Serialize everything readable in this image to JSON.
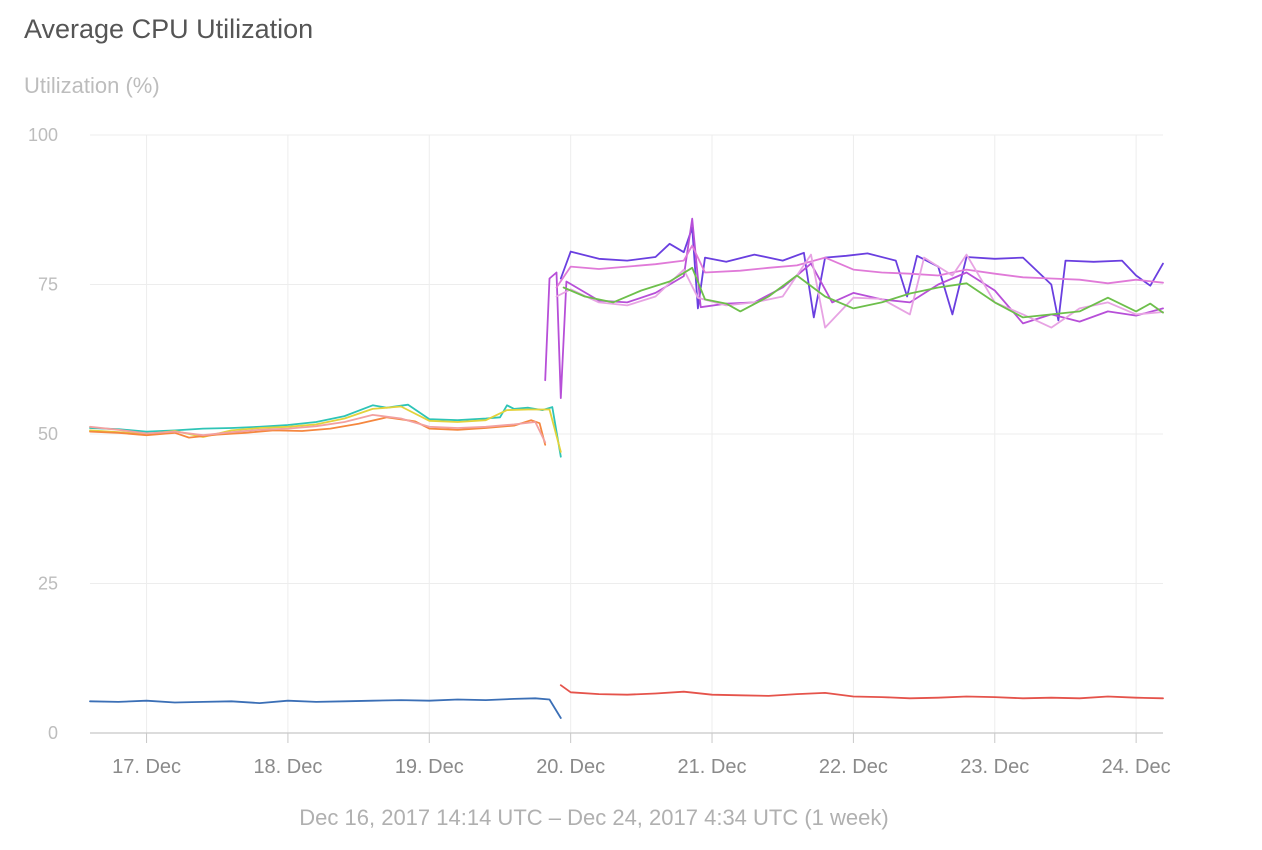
{
  "chart_data": {
    "type": "line",
    "title": "Average CPU Utilization",
    "ylabel": "Utilization (%)",
    "xlabel": "",
    "caption": "Dec 16, 2017 14:14 UTC – Dec 24, 2017 4:34 UTC (1 week)",
    "x_axis": {
      "type": "time",
      "unit": "days",
      "range": [
        "2017-12-16 14:14",
        "2017-12-24 04:34"
      ],
      "ticks": [
        {
          "label": "17. Dec",
          "value": 17.0
        },
        {
          "label": "18. Dec",
          "value": 18.0
        },
        {
          "label": "19. Dec",
          "value": 19.0
        },
        {
          "label": "20. Dec",
          "value": 20.0
        },
        {
          "label": "21. Dec",
          "value": 21.0
        },
        {
          "label": "22. Dec",
          "value": 22.0
        },
        {
          "label": "23. Dec",
          "value": 23.0
        },
        {
          "label": "24. Dec",
          "value": 24.0
        }
      ]
    },
    "x_domain": [
      16.6,
      24.19
    ],
    "ylim": [
      0,
      100
    ],
    "y_ticks": [
      0,
      25,
      50,
      75,
      100
    ],
    "grid": true,
    "legend": "none",
    "series": [
      {
        "color": "#2ec4b6",
        "points": [
          [
            16.6,
            51
          ],
          [
            16.8,
            50.8
          ],
          [
            17.0,
            50.4
          ],
          [
            17.2,
            50.6
          ],
          [
            17.4,
            50.9
          ],
          [
            17.6,
            51.0
          ],
          [
            17.8,
            51.2
          ],
          [
            18.0,
            51.5
          ],
          [
            18.2,
            52.0
          ],
          [
            18.4,
            53.0
          ],
          [
            18.6,
            54.8
          ],
          [
            18.7,
            54.4
          ],
          [
            18.85,
            54.9
          ],
          [
            19.0,
            52.5
          ],
          [
            19.2,
            52.3
          ],
          [
            19.4,
            52.6
          ],
          [
            19.5,
            52.8
          ],
          [
            19.55,
            54.8
          ],
          [
            19.6,
            54.2
          ],
          [
            19.7,
            54.4
          ],
          [
            19.8,
            54.0
          ],
          [
            19.87,
            54.5
          ],
          [
            19.93,
            46.2
          ]
        ]
      },
      {
        "color": "#e3d23b",
        "points": [
          [
            16.6,
            50.6
          ],
          [
            16.8,
            50.3
          ],
          [
            17.0,
            50.0
          ],
          [
            17.2,
            50.5
          ],
          [
            17.4,
            49.5
          ],
          [
            17.6,
            50.6
          ],
          [
            17.8,
            51.0
          ],
          [
            18.0,
            51.2
          ],
          [
            18.2,
            51.6
          ],
          [
            18.4,
            52.6
          ],
          [
            18.6,
            54.2
          ],
          [
            18.8,
            54.6
          ],
          [
            19.0,
            52.2
          ],
          [
            19.2,
            52.0
          ],
          [
            19.4,
            52.3
          ],
          [
            19.55,
            54.0
          ],
          [
            19.7,
            54.1
          ],
          [
            19.85,
            54.1
          ],
          [
            19.93,
            47.0
          ]
        ]
      },
      {
        "color": "#f5873f",
        "points": [
          [
            16.6,
            50.4
          ],
          [
            16.8,
            50.2
          ],
          [
            17.0,
            49.8
          ],
          [
            17.2,
            50.2
          ],
          [
            17.3,
            49.4
          ],
          [
            17.5,
            49.9
          ],
          [
            17.7,
            50.2
          ],
          [
            17.9,
            50.6
          ],
          [
            18.1,
            50.5
          ],
          [
            18.3,
            50.9
          ],
          [
            18.5,
            51.7
          ],
          [
            18.7,
            52.8
          ],
          [
            18.9,
            52.1
          ],
          [
            19.0,
            50.9
          ],
          [
            19.2,
            50.7
          ],
          [
            19.4,
            51.0
          ],
          [
            19.6,
            51.4
          ],
          [
            19.72,
            52.3
          ],
          [
            19.78,
            51.8
          ],
          [
            19.82,
            48.2
          ]
        ]
      },
      {
        "color": "#f2a0a0",
        "points": [
          [
            16.6,
            51.2
          ],
          [
            16.8,
            50.7
          ],
          [
            17.0,
            50.1
          ],
          [
            17.2,
            50.4
          ],
          [
            17.4,
            49.8
          ],
          [
            17.6,
            50.3
          ],
          [
            17.8,
            50.7
          ],
          [
            18.0,
            50.9
          ],
          [
            18.2,
            51.3
          ],
          [
            18.4,
            52.0
          ],
          [
            18.6,
            53.2
          ],
          [
            18.8,
            52.6
          ],
          [
            19.0,
            51.2
          ],
          [
            19.2,
            51.0
          ],
          [
            19.4,
            51.2
          ],
          [
            19.6,
            51.6
          ],
          [
            19.75,
            52.0
          ],
          [
            19.82,
            48.6
          ]
        ]
      },
      {
        "color": "#3b6fb6",
        "points": [
          [
            16.6,
            5.3
          ],
          [
            16.8,
            5.2
          ],
          [
            17.0,
            5.4
          ],
          [
            17.2,
            5.1
          ],
          [
            17.4,
            5.2
          ],
          [
            17.6,
            5.3
          ],
          [
            17.8,
            5.0
          ],
          [
            18.0,
            5.4
          ],
          [
            18.2,
            5.2
          ],
          [
            18.4,
            5.3
          ],
          [
            18.6,
            5.4
          ],
          [
            18.8,
            5.5
          ],
          [
            19.0,
            5.4
          ],
          [
            19.2,
            5.6
          ],
          [
            19.4,
            5.5
          ],
          [
            19.6,
            5.7
          ],
          [
            19.75,
            5.8
          ],
          [
            19.85,
            5.6
          ],
          [
            19.93,
            2.5
          ]
        ]
      },
      {
        "color": "#e5534b",
        "points": [
          [
            19.93,
            8.0
          ],
          [
            20.0,
            6.8
          ],
          [
            20.2,
            6.5
          ],
          [
            20.4,
            6.4
          ],
          [
            20.6,
            6.6
          ],
          [
            20.8,
            6.9
          ],
          [
            21.0,
            6.4
          ],
          [
            21.2,
            6.3
          ],
          [
            21.4,
            6.2
          ],
          [
            21.6,
            6.5
          ],
          [
            21.8,
            6.7
          ],
          [
            22.0,
            6.1
          ],
          [
            22.2,
            6.0
          ],
          [
            22.4,
            5.8
          ],
          [
            22.6,
            5.9
          ],
          [
            22.8,
            6.1
          ],
          [
            23.0,
            6.0
          ],
          [
            23.2,
            5.8
          ],
          [
            23.4,
            5.9
          ],
          [
            23.6,
            5.8
          ],
          [
            23.8,
            6.1
          ],
          [
            24.0,
            5.9
          ],
          [
            24.19,
            5.8
          ]
        ]
      },
      {
        "color": "#6a3fe0",
        "points": [
          [
            19.93,
            76.0
          ],
          [
            20.0,
            80.5
          ],
          [
            20.2,
            79.3
          ],
          [
            20.4,
            79.0
          ],
          [
            20.6,
            79.6
          ],
          [
            20.7,
            81.8
          ],
          [
            20.8,
            80.4
          ],
          [
            20.86,
            84.5
          ],
          [
            20.9,
            71.0
          ],
          [
            20.95,
            79.5
          ],
          [
            21.1,
            78.8
          ],
          [
            21.3,
            80.0
          ],
          [
            21.5,
            79.0
          ],
          [
            21.65,
            80.3
          ],
          [
            21.72,
            69.5
          ],
          [
            21.8,
            79.5
          ],
          [
            21.95,
            79.8
          ],
          [
            22.1,
            80.2
          ],
          [
            22.3,
            79.0
          ],
          [
            22.38,
            73.0
          ],
          [
            22.45,
            79.8
          ],
          [
            22.6,
            78.0
          ],
          [
            22.7,
            70.0
          ],
          [
            22.8,
            79.6
          ],
          [
            23.0,
            79.3
          ],
          [
            23.2,
            79.5
          ],
          [
            23.4,
            75.0
          ],
          [
            23.45,
            69.0
          ],
          [
            23.5,
            79.0
          ],
          [
            23.7,
            78.8
          ],
          [
            23.9,
            79.0
          ],
          [
            24.0,
            76.5
          ],
          [
            24.1,
            74.8
          ],
          [
            24.19,
            78.5
          ]
        ]
      },
      {
        "color": "#b74fd8",
        "points": [
          [
            19.82,
            59.0
          ],
          [
            19.85,
            76.0
          ],
          [
            19.9,
            77.0
          ],
          [
            19.93,
            56.0
          ],
          [
            19.97,
            75.5
          ],
          [
            20.2,
            72.3
          ],
          [
            20.4,
            72.0
          ],
          [
            20.6,
            73.6
          ],
          [
            20.8,
            76.4
          ],
          [
            20.86,
            86.0
          ],
          [
            20.92,
            71.2
          ],
          [
            21.1,
            71.8
          ],
          [
            21.3,
            72.0
          ],
          [
            21.5,
            74.5
          ],
          [
            21.7,
            78.5
          ],
          [
            21.85,
            72.0
          ],
          [
            22.0,
            73.6
          ],
          [
            22.2,
            72.5
          ],
          [
            22.4,
            72.0
          ],
          [
            22.6,
            75.0
          ],
          [
            22.8,
            77.0
          ],
          [
            23.0,
            74.0
          ],
          [
            23.2,
            68.5
          ],
          [
            23.4,
            70.0
          ],
          [
            23.6,
            68.8
          ],
          [
            23.8,
            70.5
          ],
          [
            24.0,
            69.8
          ],
          [
            24.19,
            71.0
          ]
        ]
      },
      {
        "color": "#e07ad8",
        "points": [
          [
            19.9,
            74.5
          ],
          [
            20.0,
            78.0
          ],
          [
            20.2,
            77.6
          ],
          [
            20.4,
            78.0
          ],
          [
            20.6,
            78.4
          ],
          [
            20.8,
            79.0
          ],
          [
            20.86,
            81.5
          ],
          [
            20.95,
            77.0
          ],
          [
            21.2,
            77.3
          ],
          [
            21.4,
            77.8
          ],
          [
            21.6,
            78.2
          ],
          [
            21.8,
            79.5
          ],
          [
            22.0,
            77.5
          ],
          [
            22.2,
            77.0
          ],
          [
            22.4,
            76.8
          ],
          [
            22.6,
            76.5
          ],
          [
            22.8,
            77.5
          ],
          [
            23.0,
            76.8
          ],
          [
            23.2,
            76.2
          ],
          [
            23.4,
            76.0
          ],
          [
            23.6,
            75.8
          ],
          [
            23.8,
            75.2
          ],
          [
            24.0,
            75.8
          ],
          [
            24.19,
            75.3
          ]
        ]
      },
      {
        "color": "#e7a3e3",
        "points": [
          [
            19.9,
            73.0
          ],
          [
            20.0,
            74.2
          ],
          [
            20.2,
            72.0
          ],
          [
            20.4,
            71.5
          ],
          [
            20.6,
            73.0
          ],
          [
            20.8,
            77.5
          ],
          [
            20.9,
            72.8
          ],
          [
            21.1,
            71.5
          ],
          [
            21.3,
            72.0
          ],
          [
            21.5,
            73.0
          ],
          [
            21.7,
            80.0
          ],
          [
            21.8,
            67.8
          ],
          [
            22.0,
            72.8
          ],
          [
            22.2,
            72.6
          ],
          [
            22.4,
            70.0
          ],
          [
            22.5,
            79.5
          ],
          [
            22.7,
            76.5
          ],
          [
            22.8,
            80.0
          ],
          [
            23.0,
            72.0
          ],
          [
            23.2,
            70.0
          ],
          [
            23.4,
            67.8
          ],
          [
            23.6,
            71.0
          ],
          [
            23.8,
            72.0
          ],
          [
            24.0,
            70.0
          ],
          [
            24.19,
            70.4
          ]
        ]
      },
      {
        "color": "#6dbf4b",
        "points": [
          [
            19.95,
            74.5
          ],
          [
            20.1,
            73.0
          ],
          [
            20.3,
            72.0
          ],
          [
            20.5,
            74.0
          ],
          [
            20.7,
            75.5
          ],
          [
            20.86,
            77.8
          ],
          [
            20.95,
            72.5
          ],
          [
            21.1,
            71.8
          ],
          [
            21.2,
            70.5
          ],
          [
            21.4,
            73.0
          ],
          [
            21.6,
            76.5
          ],
          [
            21.8,
            73.0
          ],
          [
            22.0,
            71.0
          ],
          [
            22.2,
            72.0
          ],
          [
            22.4,
            73.5
          ],
          [
            22.6,
            74.5
          ],
          [
            22.8,
            75.2
          ],
          [
            23.0,
            72.0
          ],
          [
            23.2,
            69.5
          ],
          [
            23.4,
            70.0
          ],
          [
            23.6,
            70.5
          ],
          [
            23.8,
            72.8
          ],
          [
            24.0,
            70.5
          ],
          [
            24.1,
            71.8
          ],
          [
            24.19,
            70.3
          ]
        ]
      }
    ]
  }
}
